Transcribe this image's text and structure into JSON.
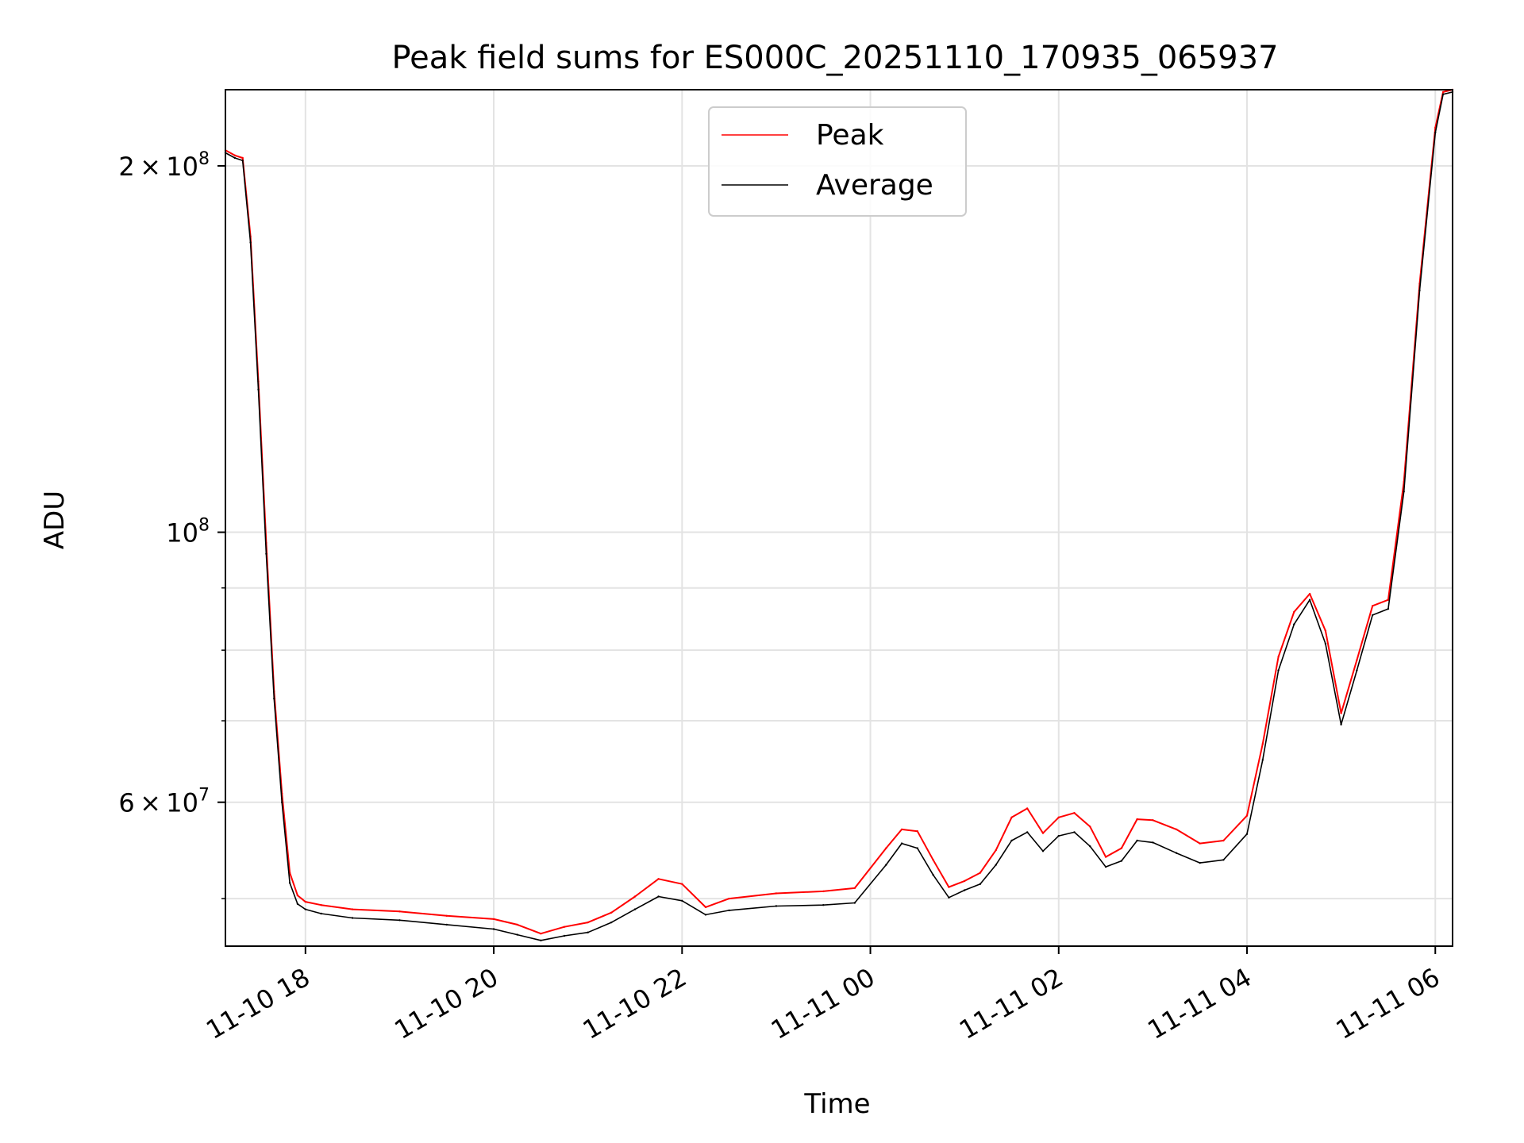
{
  "chart_data": {
    "type": "line",
    "title": "Peak field sums for ES000C_20251110_170935_065937",
    "xlabel": "Time",
    "ylabel": "ADU",
    "yscale": "log",
    "grid": true,
    "legend_position": "top-center",
    "xlim": [
      "2025-11-10 17:09",
      "2025-11-11 06:11"
    ],
    "ylim": [
      45700000,
      231000000
    ],
    "x_ticks": [
      {
        "t": "2025-11-10 18:00",
        "label": "11-10 18"
      },
      {
        "t": "2025-11-10 20:00",
        "label": "11-10 20"
      },
      {
        "t": "2025-11-10 22:00",
        "label": "11-10 22"
      },
      {
        "t": "2025-11-11 00:00",
        "label": "11-11 00"
      },
      {
        "t": "2025-11-11 02:00",
        "label": "11-11 02"
      },
      {
        "t": "2025-11-11 04:00",
        "label": "11-11 04"
      },
      {
        "t": "2025-11-11 06:00",
        "label": "11-11 06"
      }
    ],
    "y_major_ticks": [
      {
        "v": 60000000,
        "mantissa": "6",
        "exponent": "7"
      },
      {
        "v": 100000000,
        "mantissa": "",
        "exponent": "8"
      },
      {
        "v": 200000000,
        "mantissa": "2",
        "exponent": "8"
      }
    ],
    "y_minor_ticks": [
      50000000,
      70000000,
      80000000,
      90000000
    ],
    "times_sign": "×",
    "base": "10",
    "series": [
      {
        "name": "Peak",
        "color": "#ff0000",
        "x": [
          "2025-11-10 17:09",
          "2025-11-10 17:15",
          "2025-11-10 17:20",
          "2025-11-10 17:25",
          "2025-11-10 17:30",
          "2025-11-10 17:35",
          "2025-11-10 17:40",
          "2025-11-10 17:45",
          "2025-11-10 17:50",
          "2025-11-10 17:55",
          "2025-11-10 18:00",
          "2025-11-10 18:10",
          "2025-11-10 18:30",
          "2025-11-10 19:00",
          "2025-11-10 19:30",
          "2025-11-10 20:00",
          "2025-11-10 20:15",
          "2025-11-10 20:30",
          "2025-11-10 20:45",
          "2025-11-10 21:00",
          "2025-11-10 21:15",
          "2025-11-10 21:30",
          "2025-11-10 21:45",
          "2025-11-10 22:00",
          "2025-11-10 22:15",
          "2025-11-10 22:30",
          "2025-11-10 23:00",
          "2025-11-10 23:30",
          "2025-11-10 23:50",
          "2025-11-11 00:10",
          "2025-11-11 00:20",
          "2025-11-11 00:30",
          "2025-11-11 00:40",
          "2025-11-11 00:50",
          "2025-11-11 01:00",
          "2025-11-11 01:10",
          "2025-11-11 01:20",
          "2025-11-11 01:30",
          "2025-11-11 01:40",
          "2025-11-11 01:50",
          "2025-11-11 02:00",
          "2025-11-11 02:10",
          "2025-11-11 02:20",
          "2025-11-11 02:30",
          "2025-11-11 02:40",
          "2025-11-11 02:50",
          "2025-11-11 03:00",
          "2025-11-11 03:15",
          "2025-11-11 03:30",
          "2025-11-11 03:45",
          "2025-11-11 04:00",
          "2025-11-11 04:10",
          "2025-11-11 04:20",
          "2025-11-11 04:30",
          "2025-11-11 04:40",
          "2025-11-11 04:50",
          "2025-11-11 05:00",
          "2025-11-11 05:10",
          "2025-11-11 05:20",
          "2025-11-11 05:30",
          "2025-11-11 05:40",
          "2025-11-11 05:50",
          "2025-11-11 06:00",
          "2025-11-11 06:05",
          "2025-11-11 06:11"
        ],
        "values": [
          206000000,
          204000000,
          203000000,
          175000000,
          133000000,
          98000000,
          74000000,
          61000000,
          52500000,
          50300000,
          49700000,
          49400000,
          49000000,
          48800000,
          48400000,
          48100000,
          47600000,
          46800000,
          47400000,
          47800000,
          48700000,
          50200000,
          51900000,
          51400000,
          49200000,
          50000000,
          50500000,
          50700000,
          51000000,
          55000000,
          57000000,
          56800000,
          53800000,
          51100000,
          51700000,
          52500000,
          54800000,
          58300000,
          59300000,
          56600000,
          58300000,
          58800000,
          57300000,
          54100000,
          55000000,
          58100000,
          58000000,
          57000000,
          55500000,
          55800000,
          58500000,
          67000000,
          79000000,
          86000000,
          89000000,
          83000000,
          71000000,
          78500000,
          87000000,
          88000000,
          110000000,
          160000000,
          215000000,
          230000000,
          231000000
        ]
      },
      {
        "name": "Average",
        "color": "#000000",
        "x": [
          "2025-11-10 17:09",
          "2025-11-10 17:15",
          "2025-11-10 17:20",
          "2025-11-10 17:25",
          "2025-11-10 17:30",
          "2025-11-10 17:35",
          "2025-11-10 17:40",
          "2025-11-10 17:45",
          "2025-11-10 17:50",
          "2025-11-10 17:55",
          "2025-11-10 18:00",
          "2025-11-10 18:10",
          "2025-11-10 18:30",
          "2025-11-10 19:00",
          "2025-11-10 19:30",
          "2025-11-10 20:00",
          "2025-11-10 20:15",
          "2025-11-10 20:30",
          "2025-11-10 20:45",
          "2025-11-10 21:00",
          "2025-11-10 21:15",
          "2025-11-10 21:30",
          "2025-11-10 21:45",
          "2025-11-10 22:00",
          "2025-11-10 22:15",
          "2025-11-10 22:30",
          "2025-11-10 23:00",
          "2025-11-10 23:30",
          "2025-11-10 23:50",
          "2025-11-11 00:10",
          "2025-11-11 00:20",
          "2025-11-11 00:30",
          "2025-11-11 00:40",
          "2025-11-11 00:50",
          "2025-11-11 01:00",
          "2025-11-11 01:10",
          "2025-11-11 01:20",
          "2025-11-11 01:30",
          "2025-11-11 01:40",
          "2025-11-11 01:50",
          "2025-11-11 02:00",
          "2025-11-11 02:10",
          "2025-11-11 02:20",
          "2025-11-11 02:30",
          "2025-11-11 02:40",
          "2025-11-11 02:50",
          "2025-11-11 03:00",
          "2025-11-11 03:15",
          "2025-11-11 03:30",
          "2025-11-11 03:45",
          "2025-11-11 04:00",
          "2025-11-11 04:10",
          "2025-11-11 04:20",
          "2025-11-11 04:30",
          "2025-11-11 04:40",
          "2025-11-11 04:50",
          "2025-11-11 05:00",
          "2025-11-11 05:10",
          "2025-11-11 05:20",
          "2025-11-11 05:30",
          "2025-11-11 05:40",
          "2025-11-11 05:50",
          "2025-11-11 06:00",
          "2025-11-11 06:05",
          "2025-11-11 06:11"
        ],
        "values": [
          205000000,
          203000000,
          202000000,
          173000000,
          131000000,
          96000000,
          73000000,
          60000000,
          51500000,
          49500000,
          49000000,
          48600000,
          48200000,
          48000000,
          47600000,
          47200000,
          46700000,
          46200000,
          46600000,
          46900000,
          47800000,
          49000000,
          50200000,
          49800000,
          48500000,
          48900000,
          49300000,
          49400000,
          49600000,
          53300000,
          55500000,
          55000000,
          52300000,
          50100000,
          50800000,
          51400000,
          53300000,
          55800000,
          56700000,
          54700000,
          56300000,
          56700000,
          55200000,
          53100000,
          53700000,
          55800000,
          55600000,
          54500000,
          53500000,
          53800000,
          56500000,
          65000000,
          77000000,
          84000000,
          88000000,
          81000000,
          69500000,
          77000000,
          85500000,
          86500000,
          108000000,
          158000000,
          213000000,
          229000000,
          230000000
        ]
      }
    ]
  }
}
